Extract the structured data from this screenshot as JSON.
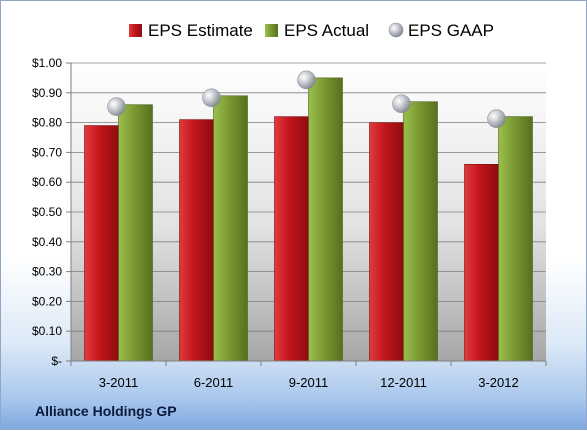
{
  "company": "Alliance Holdings GP",
  "chart_data": {
    "type": "bar",
    "categories": [
      "3-2011",
      "6-2011",
      "9-2011",
      "12-2011",
      "3-2012"
    ],
    "series": [
      {
        "name": "EPS Estimate",
        "kind": "bar",
        "color": "#c0151b",
        "values": [
          0.79,
          0.81,
          0.82,
          0.8,
          0.66
        ]
      },
      {
        "name": "EPS Actual",
        "kind": "bar",
        "color": "#7a9a32",
        "values": [
          0.86,
          0.89,
          0.95,
          0.87,
          0.82
        ]
      },
      {
        "name": "EPS GAAP",
        "kind": "marker",
        "color": "#b4b8c0",
        "values": [
          0.86,
          0.89,
          0.95,
          0.87,
          0.82
        ]
      }
    ],
    "ylim": [
      0,
      1.0
    ],
    "yticks": [
      0,
      0.1,
      0.2,
      0.3,
      0.4,
      0.5,
      0.6,
      0.7,
      0.8,
      0.9,
      1.0
    ],
    "ytick_labels": [
      "$-",
      "$0.10",
      "$0.20",
      "$0.30",
      "$0.40",
      "$0.50",
      "$0.60",
      "$0.70",
      "$0.80",
      "$0.90",
      "$1.00"
    ],
    "grid": true,
    "legend_position": "top"
  }
}
